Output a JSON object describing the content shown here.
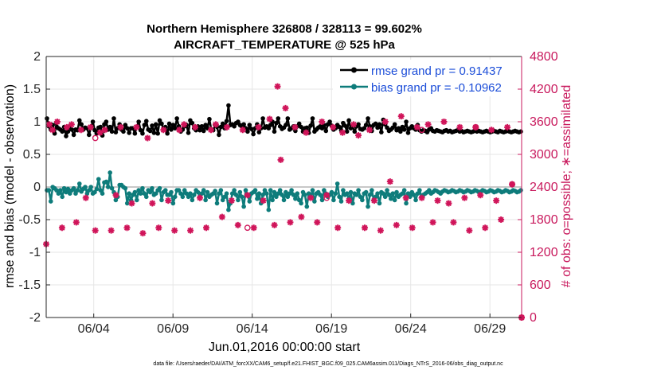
{
  "chart_data": {
    "type": "line",
    "title_line1": "Northern Hemisphere 326808 / 328113 = 99.602%",
    "title_line2": "AIRCRAFT_TEMPERATURE @ 525 hPa",
    "ylabel": "rmse and bias (model - observation)",
    "ylabel_right": "# of obs: o=possible; ∗=assimilated",
    "xlabel": "Jun.01,2016 00:00:00 start",
    "footnote": "data file: /Users/raeder/DAI/ATM_forcXX/CAM6_setup/f.e21.FHIST_BGC.f09_025.CAM6assim.011/Diags_NTrS_2016-06/obs_diag_output.nc",
    "ylim": [
      -2,
      2
    ],
    "ylim_right": [
      0,
      4800
    ],
    "xlim": [
      0.5,
      30.5
    ],
    "y_ticks": [
      "-2",
      "-1.5",
      "-1",
      "-0.5",
      "0",
      "0.5",
      "1",
      "1.5",
      "2"
    ],
    "y_ticks_right": [
      "0",
      "600",
      "1200",
      "1800",
      "2400",
      "3000",
      "3600",
      "4200",
      "4800"
    ],
    "x_ticks": [
      {
        "day": 3.5,
        "label": "06/04"
      },
      {
        "day": 8.5,
        "label": "06/09"
      },
      {
        "day": 13.5,
        "label": "06/14"
      },
      {
        "day": 18.5,
        "label": "06/19"
      },
      {
        "day": 23.5,
        "label": "06/24"
      },
      {
        "day": 28.5,
        "label": "06/29"
      }
    ],
    "legend": {
      "rmse_label": "rmse grand pr = 0.91437",
      "bias_label": "bias grand pr = -0.10962",
      "position": "top-right"
    },
    "colors": {
      "rmse": "#000000",
      "bias": "#0e7c7b",
      "obs": "#d0155a",
      "zero_line": "#c8c8c8",
      "grid": "#e6e6e6"
    },
    "rmse_values": [
      1.05,
      0.93,
      0.88,
      0.95,
      0.82,
      0.98,
      0.9,
      0.88,
      0.85,
      0.92,
      0.78,
      0.85,
      0.94,
      0.88,
      0.8,
      0.88,
      0.87,
      1.02,
      0.96,
      0.88,
      0.91,
      0.9,
      0.8,
      0.91,
      1.0,
      0.87,
      0.82,
      0.91,
      0.92,
      0.79,
      0.96,
      1.0,
      0.88,
      0.92,
      0.85,
      1.05,
      0.84,
      0.9,
      0.96,
      0.88,
      0.85,
      0.95,
      0.9,
      0.83,
      0.9,
      0.9,
      0.82,
      0.92,
      1.0,
      0.87,
      0.82,
      0.95,
      1.01,
      0.88,
      0.86,
      0.94,
      0.83,
      0.96,
      0.82,
      1.02,
      0.97,
      0.89,
      0.92,
      0.82,
      0.97,
      0.88,
      0.95,
      0.9,
      1.05,
      0.93,
      0.85,
      0.88,
      0.93,
      0.95,
      0.83,
      1.02,
      0.98,
      0.9,
      0.87,
      0.93,
      0.87,
      0.93,
      0.86,
      0.95,
      0.9,
      1.04,
      0.88,
      0.87,
      0.95,
      0.92,
      0.8,
      0.92,
      0.97,
      0.9,
      1.01,
      1.25,
      0.95,
      0.96,
      0.93,
      0.98,
      1.0,
      0.95,
      0.92,
      0.96,
      0.9,
      0.85,
      0.95,
      0.89,
      0.81,
      0.9,
      0.96,
      0.84,
      0.9,
      1.05,
      0.91,
      0.93,
      0.9,
      0.95,
      1.0,
      0.85,
      0.98,
      1.05,
      0.93,
      0.89,
      0.91,
      0.95,
      1.05,
      0.88,
      0.9,
      0.93,
      0.86,
      0.93,
      0.97,
      0.92,
      0.85,
      0.9,
      0.91,
      0.83,
      0.94,
      1.05,
      0.85,
      0.88,
      0.91,
      0.93,
      0.9,
      0.95,
      0.86,
      0.96,
      1.0,
      0.94,
      0.88,
      0.9,
      0.95,
      0.92,
      0.87,
      0.98,
      0.94,
      0.85,
      1.02,
      0.9,
      0.92,
      0.85,
      0.93,
      0.96,
      0.89,
      0.88,
      0.9,
      0.95,
      1.05,
      0.93,
      0.86,
      0.95,
      0.97,
      0.91,
      0.96,
      0.84,
      1.03,
      0.96,
      0.91,
      0.86,
      0.88,
      0.91,
      0.96,
      0.87,
      0.9,
      0.85,
      0.92,
      0.88,
      1.0,
      0.83,
      0.9,
      0.93,
      0.9,
      0.88,
      0.95,
      0.87,
      0.85,
      0.87,
      0.86,
      0.84,
      0.88,
      0.9,
      0.86,
      0.85,
      0.87,
      0.86,
      0.85,
      0.84,
      0.86,
      0.87,
      0.85,
      0.86,
      0.84,
      0.85,
      0.86,
      0.87,
      0.85,
      0.86,
      0.84,
      0.85,
      0.86,
      0.85,
      0.84,
      0.85,
      0.87,
      0.85,
      0.86,
      0.85,
      0.84,
      0.85,
      0.86,
      0.85,
      0.84,
      0.85,
      0.86,
      0.85,
      0.84,
      0.86,
      0.85,
      0.84,
      0.85,
      0.86,
      0.85,
      0.84,
      0.85,
      0.86,
      0.85,
      0.84,
      0.85
    ],
    "bias_values": [
      -0.05,
      -0.05,
      -0.22,
      0.0,
      -0.02,
      -0.05,
      -0.1,
      -0.05,
      -0.15,
      -0.02,
      -0.08,
      -0.03,
      -0.1,
      -0.05,
      -0.02,
      -0.1,
      -0.05,
      0.05,
      -0.07,
      -0.03,
      0.0,
      -0.1,
      -0.05,
      0.0,
      -0.1,
      -0.08,
      -0.03,
      0.12,
      -0.05,
      -0.1,
      0.07,
      0.08,
      0.0,
      0.22,
      -0.02,
      -0.08,
      -0.2,
      -0.15,
      0.03,
      0.03,
      0.0,
      -0.02,
      -0.25,
      -0.1,
      -0.2,
      -0.12,
      -0.08,
      -0.2,
      -0.05,
      -0.1,
      -0.02,
      -0.1,
      -0.15,
      -0.05,
      -0.08,
      -0.02,
      -0.12,
      -0.1,
      -0.05,
      -0.02,
      -0.2,
      -0.08,
      -0.05,
      -0.12,
      -0.12,
      -0.08,
      -0.25,
      -0.15,
      -0.05,
      -0.05,
      -0.1,
      -0.15,
      -0.05,
      -0.1,
      -0.15,
      -0.1,
      -0.2,
      -0.12,
      -0.05,
      -0.08,
      -0.15,
      -0.1,
      -0.05,
      -0.2,
      -0.08,
      -0.15,
      -0.12,
      -0.1,
      -0.06,
      -0.25,
      -0.1,
      -0.05,
      -0.2,
      -0.15,
      -0.1,
      -0.35,
      -0.25,
      -0.1,
      -0.05,
      -0.12,
      -0.2,
      -0.08,
      -0.15,
      -0.3,
      -0.05,
      -0.12,
      -0.22,
      -0.1,
      -0.08,
      -0.05,
      -0.18,
      -0.1,
      -0.25,
      -0.12,
      -0.05,
      -0.1,
      -0.35,
      -0.05,
      -0.2,
      -0.08,
      -0.15,
      -0.1,
      -0.05,
      -0.12,
      -0.2,
      -0.08,
      -0.15,
      -0.1,
      -0.05,
      -0.12,
      -0.18,
      -0.1,
      -0.2,
      -0.25,
      -0.08,
      -0.12,
      -0.3,
      -0.1,
      -0.15,
      -0.05,
      -0.22,
      -0.1,
      -0.08,
      -0.12,
      -0.2,
      -0.05,
      -0.1,
      -0.15,
      -0.12,
      -0.08,
      -0.2,
      -0.1,
      0.05,
      -0.15,
      -0.22,
      -0.05,
      -0.12,
      -0.1,
      -0.18,
      -0.08,
      -0.25,
      -0.1,
      -0.12,
      -0.05,
      -0.15,
      -0.2,
      -0.1,
      -0.08,
      -0.3,
      -0.12,
      -0.05,
      -0.2,
      -0.15,
      -0.1,
      -0.25,
      -0.08,
      -0.1,
      -0.15,
      -0.05,
      -0.12,
      -0.18,
      -0.1,
      -0.2,
      -0.08,
      -0.15,
      -0.12,
      -0.1,
      -0.05,
      -0.25,
      -0.1,
      -0.15,
      -0.08,
      -0.12,
      -0.2,
      -0.1,
      -0.05,
      -0.15,
      -0.12,
      -0.1,
      -0.08,
      -0.05,
      -0.1,
      -0.08,
      -0.05,
      -0.06,
      -0.08,
      -0.1,
      -0.07,
      -0.05,
      -0.06,
      -0.08,
      -0.07,
      -0.05,
      -0.06,
      -0.08,
      -0.07,
      -0.05,
      -0.06,
      -0.08,
      -0.07,
      -0.05,
      -0.06,
      -0.08,
      -0.07,
      -0.05,
      -0.06,
      -0.08,
      -0.07,
      -0.05,
      -0.06,
      -0.08,
      -0.07,
      -0.05,
      -0.06,
      -0.08,
      -0.07,
      -0.05,
      -0.06,
      -0.08,
      -0.07,
      -0.05,
      -0.06,
      -0.08,
      -0.07,
      -0.05,
      -0.06,
      -0.08,
      -0.07,
      -0.05
    ],
    "obs_assimilated": [
      {
        "day": 0.5,
        "count": 1350
      },
      {
        "day": 0.7,
        "count": 3550
      },
      {
        "day": 0.9,
        "count": 3450
      },
      {
        "day": 1.2,
        "count": 3600
      },
      {
        "day": 1.5,
        "count": 1650
      },
      {
        "day": 1.8,
        "count": 3500
      },
      {
        "day": 2.1,
        "count": 3550
      },
      {
        "day": 2.4,
        "count": 1750
      },
      {
        "day": 2.7,
        "count": 3450
      },
      {
        "day": 3.0,
        "count": 2200
      },
      {
        "day": 3.3,
        "count": 3500
      },
      {
        "day": 3.6,
        "count": 1600
      },
      {
        "day": 3.9,
        "count": 3400
      },
      {
        "day": 4.2,
        "count": 3450
      },
      {
        "day": 4.6,
        "count": 1600
      },
      {
        "day": 4.9,
        "count": 2250
      },
      {
        "day": 5.2,
        "count": 3500
      },
      {
        "day": 5.6,
        "count": 1650
      },
      {
        "day": 5.9,
        "count": 2100
      },
      {
        "day": 6.2,
        "count": 3500
      },
      {
        "day": 6.6,
        "count": 1550
      },
      {
        "day": 6.9,
        "count": 3300
      },
      {
        "day": 7.2,
        "count": 2100
      },
      {
        "day": 7.6,
        "count": 1650
      },
      {
        "day": 7.9,
        "count": 3450
      },
      {
        "day": 8.2,
        "count": 2150
      },
      {
        "day": 8.6,
        "count": 1600
      },
      {
        "day": 8.9,
        "count": 3450
      },
      {
        "day": 9.2,
        "count": 3550
      },
      {
        "day": 9.6,
        "count": 1600
      },
      {
        "day": 9.9,
        "count": 3500
      },
      {
        "day": 10.2,
        "count": 2200
      },
      {
        "day": 10.6,
        "count": 1650
      },
      {
        "day": 10.9,
        "count": 3450
      },
      {
        "day": 11.2,
        "count": 3550
      },
      {
        "day": 11.6,
        "count": 1850
      },
      {
        "day": 11.9,
        "count": 3500
      },
      {
        "day": 12.2,
        "count": 2150
      },
      {
        "day": 12.6,
        "count": 1700
      },
      {
        "day": 12.9,
        "count": 3450
      },
      {
        "day": 13.2,
        "count": 2250
      },
      {
        "day": 13.6,
        "count": 1650
      },
      {
        "day": 13.9,
        "count": 3500
      },
      {
        "day": 14.2,
        "count": 2150
      },
      {
        "day": 14.6,
        "count": 3650
      },
      {
        "day": 14.9,
        "count": 1700
      },
      {
        "day": 15.1,
        "count": 4250
      },
      {
        "day": 15.3,
        "count": 2900
      },
      {
        "day": 15.6,
        "count": 3850
      },
      {
        "day": 15.9,
        "count": 1750
      },
      {
        "day": 16.2,
        "count": 3500
      },
      {
        "day": 16.6,
        "count": 1850
      },
      {
        "day": 16.9,
        "count": 3400
      },
      {
        "day": 17.2,
        "count": 2200
      },
      {
        "day": 17.6,
        "count": 1750
      },
      {
        "day": 17.9,
        "count": 3600
      },
      {
        "day": 18.2,
        "count": 2250
      },
      {
        "day": 18.6,
        "count": 3500
      },
      {
        "day": 18.9,
        "count": 1650
      },
      {
        "day": 19.2,
        "count": 3400
      },
      {
        "day": 19.6,
        "count": 2150
      },
      {
        "day": 19.9,
        "count": 3550
      },
      {
        "day": 20.2,
        "count": 3350
      },
      {
        "day": 20.6,
        "count": 1650
      },
      {
        "day": 20.9,
        "count": 3450
      },
      {
        "day": 21.2,
        "count": 2150
      },
      {
        "day": 21.6,
        "count": 1600
      },
      {
        "day": 21.9,
        "count": 3600
      },
      {
        "day": 22.2,
        "count": 2500
      },
      {
        "day": 22.6,
        "count": 1700
      },
      {
        "day": 22.9,
        "count": 3700
      },
      {
        "day": 23.2,
        "count": 2200
      },
      {
        "day": 23.6,
        "count": 1650
      },
      {
        "day": 23.9,
        "count": 3500
      },
      {
        "day": 24.2,
        "count": 2200
      },
      {
        "day": 24.6,
        "count": 3550
      },
      {
        "day": 24.9,
        "count": 1750
      },
      {
        "day": 25.2,
        "count": 2150
      },
      {
        "day": 25.6,
        "count": 3600
      },
      {
        "day": 25.9,
        "count": 2100
      },
      {
        "day": 26.2,
        "count": 1750
      },
      {
        "day": 26.6,
        "count": 3500
      },
      {
        "day": 26.9,
        "count": 2200
      },
      {
        "day": 27.2,
        "count": 1600
      },
      {
        "day": 27.6,
        "count": 3500
      },
      {
        "day": 27.9,
        "count": 2250
      },
      {
        "day": 28.2,
        "count": 1650
      },
      {
        "day": 28.6,
        "count": 3450
      },
      {
        "day": 28.9,
        "count": 2150
      },
      {
        "day": 29.2,
        "count": 1800
      },
      {
        "day": 29.6,
        "count": 3500
      },
      {
        "day": 29.9,
        "count": 2450
      },
      {
        "day": 30.5,
        "count": 0
      }
    ],
    "obs_possible": [
      {
        "day": 3.6,
        "count": 3300
      },
      {
        "day": 13.2,
        "count": 1650
      },
      {
        "day": 18.2,
        "count": 2200
      },
      {
        "day": 24.2,
        "count": 3450
      },
      {
        "day": 27.6,
        "count": 3500
      },
      {
        "day": 29.9,
        "count": 2450
      },
      {
        "day": 30.5,
        "count": 0
      }
    ]
  }
}
